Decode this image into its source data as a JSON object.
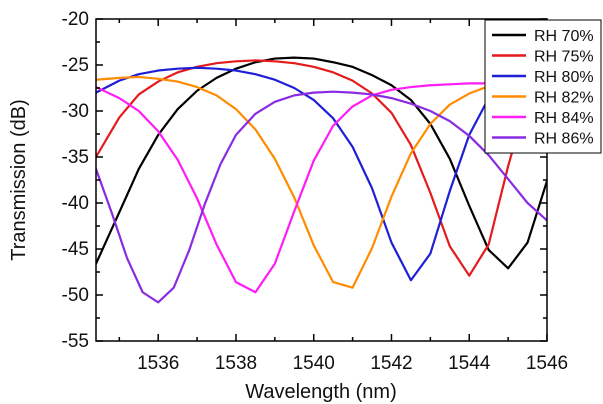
{
  "chart_data": {
    "type": "line",
    "xlabel": "Wavelength (nm)",
    "ylabel": "Transmission (dB)",
    "xlim": [
      1534.4,
      1546
    ],
    "ylim": [
      -55,
      -20
    ],
    "x_ticks": [
      1536,
      1538,
      1540,
      1542,
      1544,
      1546
    ],
    "y_ticks": [
      -55,
      -50,
      -45,
      -40,
      -35,
      -30,
      -25,
      -20
    ],
    "legend_position": "top-right",
    "colors": [
      "#000000",
      "#e41a1c",
      "#1f1fd6",
      "#ff8c00",
      "#ff1df5",
      "#8a2be2"
    ],
    "series": [
      {
        "name": "RH 70%",
        "color": "#000000",
        "x": [
          1534.4,
          1535.0,
          1535.5,
          1536.0,
          1536.5,
          1537.0,
          1537.5,
          1538.0,
          1538.5,
          1539.0,
          1539.5,
          1540.0,
          1540.5,
          1541.0,
          1541.5,
          1542.0,
          1542.5,
          1543.0,
          1543.5,
          1544.0,
          1544.5,
          1545.0,
          1545.5,
          1546.0
        ],
        "y": [
          -46.6,
          -41.0,
          -36.3,
          -32.6,
          -29.8,
          -27.8,
          -26.4,
          -25.4,
          -24.7,
          -24.3,
          -24.2,
          -24.3,
          -24.7,
          -25.2,
          -26.1,
          -27.2,
          -28.8,
          -31.4,
          -35.2,
          -40.3,
          -45.1,
          -47.1,
          -44.3,
          -37.6
        ]
      },
      {
        "name": "RH 75%",
        "color": "#e41a1c",
        "x": [
          1534.4,
          1535.0,
          1535.5,
          1536.0,
          1536.5,
          1537.0,
          1537.5,
          1538.0,
          1538.5,
          1539.0,
          1539.5,
          1540.0,
          1540.5,
          1541.0,
          1541.5,
          1542.0,
          1542.5,
          1543.0,
          1543.5,
          1544.0,
          1544.5,
          1545.0,
          1545.5,
          1546.0
        ],
        "y": [
          -35.0,
          -30.7,
          -28.2,
          -26.8,
          -25.8,
          -25.2,
          -24.8,
          -24.6,
          -24.5,
          -24.6,
          -24.8,
          -25.2,
          -25.8,
          -26.7,
          -28.1,
          -30.2,
          -33.7,
          -38.9,
          -44.7,
          -47.9,
          -44.5,
          -36.0,
          -28.5,
          -24.5
        ]
      },
      {
        "name": "RH 80%",
        "color": "#1f1fd6",
        "x": [
          1534.4,
          1535.0,
          1535.5,
          1536.0,
          1536.5,
          1537.0,
          1537.5,
          1538.0,
          1538.5,
          1539.0,
          1539.5,
          1540.0,
          1540.5,
          1541.0,
          1541.5,
          1542.0,
          1542.5,
          1543.0,
          1543.5,
          1544.0,
          1544.5,
          1545.0,
          1545.5,
          1546.0
        ],
        "y": [
          -28.0,
          -26.7,
          -26.0,
          -25.6,
          -25.4,
          -25.3,
          -25.4,
          -25.6,
          -26.0,
          -26.6,
          -27.5,
          -28.8,
          -30.8,
          -33.9,
          -38.4,
          -44.3,
          -48.4,
          -45.5,
          -38.7,
          -32.6,
          -28.6,
          -26.4,
          -25.2,
          -24.7
        ]
      },
      {
        "name": "RH 82%",
        "color": "#ff8c00",
        "x": [
          1534.4,
          1535.0,
          1535.5,
          1536.0,
          1536.5,
          1537.0,
          1537.5,
          1538.0,
          1538.5,
          1539.0,
          1539.5,
          1540.0,
          1540.5,
          1541.0,
          1541.5,
          1542.0,
          1542.5,
          1543.0,
          1543.5,
          1544.0,
          1544.5,
          1545.0,
          1545.5,
          1546.0
        ],
        "y": [
          -26.6,
          -26.4,
          -26.3,
          -26.5,
          -26.8,
          -27.4,
          -28.3,
          -29.8,
          -32.0,
          -35.2,
          -39.4,
          -44.6,
          -48.6,
          -49.2,
          -44.9,
          -39.3,
          -34.6,
          -31.4,
          -29.3,
          -28.1,
          -27.3,
          -26.9,
          -26.8,
          -26.9
        ]
      },
      {
        "name": "RH 84%",
        "color": "#ff1df5",
        "x": [
          1534.4,
          1535.0,
          1535.5,
          1536.0,
          1536.5,
          1537.0,
          1537.5,
          1538.0,
          1538.5,
          1539.0,
          1539.5,
          1540.0,
          1540.5,
          1541.0,
          1541.5,
          1542.0,
          1542.5,
          1543.0,
          1543.5,
          1544.0,
          1544.5,
          1545.0,
          1545.5,
          1546.0
        ],
        "y": [
          -27.4,
          -28.6,
          -30.0,
          -32.2,
          -35.3,
          -39.5,
          -44.5,
          -48.6,
          -49.7,
          -46.6,
          -40.9,
          -35.4,
          -31.6,
          -29.5,
          -28.3,
          -27.7,
          -27.4,
          -27.2,
          -27.1,
          -27.0,
          -27.0,
          -27.0,
          -27.0,
          -27.0
        ]
      },
      {
        "name": "RH 86%",
        "color": "#8a2be2",
        "x": [
          1534.4,
          1534.8,
          1535.2,
          1535.6,
          1536.0,
          1536.4,
          1536.8,
          1537.2,
          1537.6,
          1538.0,
          1538.5,
          1539.0,
          1539.5,
          1540.0,
          1540.5,
          1541.0,
          1541.5,
          1542.0,
          1542.5,
          1543.0,
          1543.5,
          1544.0,
          1544.5,
          1545.0,
          1545.5,
          1546.0
        ],
        "y": [
          -36.3,
          -41.0,
          -46.0,
          -49.7,
          -50.8,
          -49.2,
          -45.1,
          -40.1,
          -35.8,
          -32.6,
          -30.3,
          -29.0,
          -28.3,
          -28.0,
          -27.9,
          -28.0,
          -28.2,
          -28.6,
          -29.2,
          -30.0,
          -31.1,
          -32.7,
          -34.8,
          -37.4,
          -40.0,
          -41.9
        ]
      }
    ]
  }
}
